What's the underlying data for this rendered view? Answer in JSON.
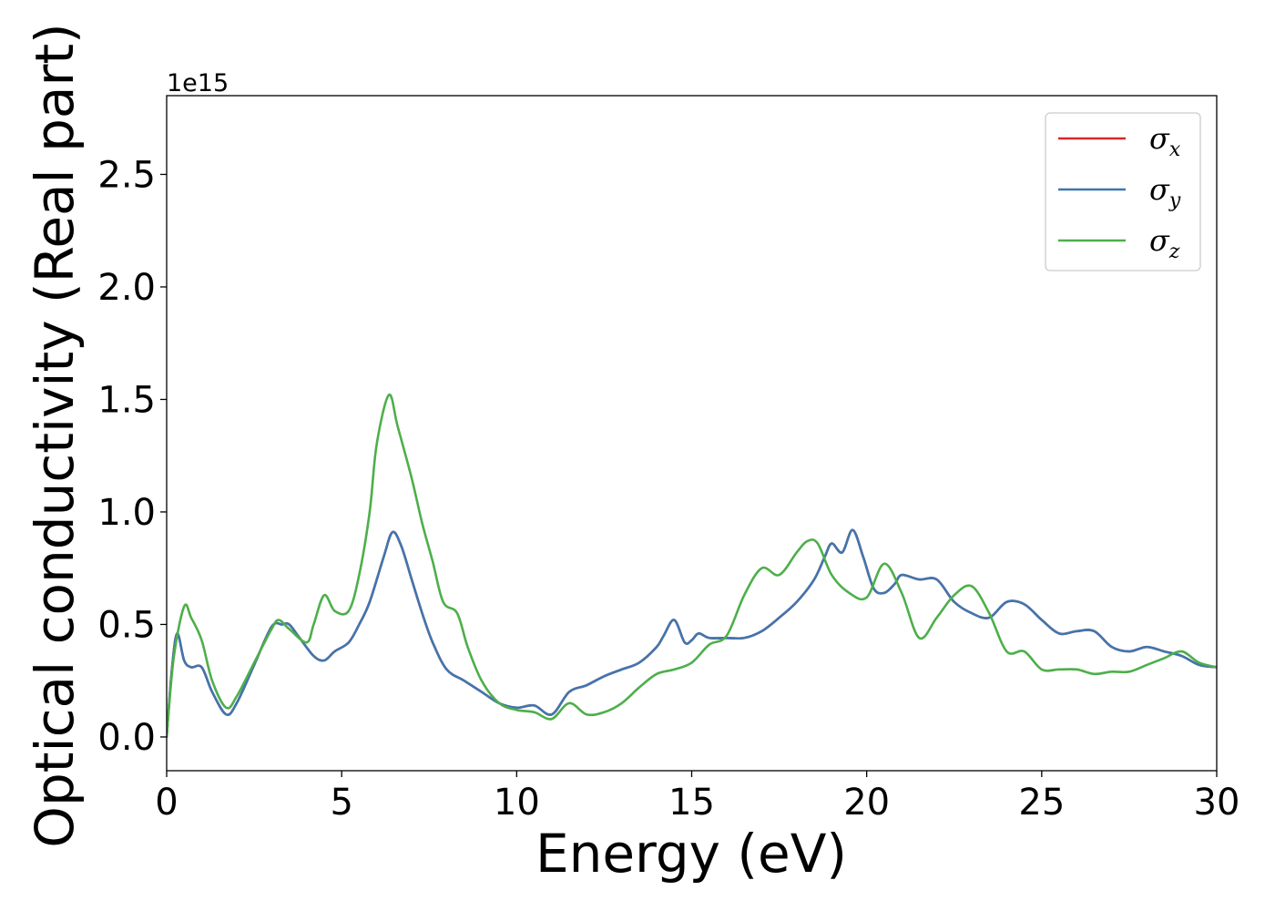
{
  "chart_data": {
    "type": "line",
    "xlabel": "Energy (eV)",
    "ylabel": "Optical conductivity (Real part)",
    "y_offset_label": "1e15",
    "xlim": [
      0,
      30
    ],
    "ylim": [
      -0.15,
      2.85
    ],
    "x_ticks": [
      0,
      5,
      10,
      15,
      20,
      25,
      30
    ],
    "x_tick_labels": [
      "0",
      "5",
      "10",
      "15",
      "20",
      "25",
      "30"
    ],
    "y_ticks": [
      0.0,
      0.5,
      1.0,
      1.5,
      2.0,
      2.5
    ],
    "y_tick_labels": [
      "0.0",
      "0.5",
      "1.0",
      "1.5",
      "2.0",
      "2.5"
    ],
    "grid": false,
    "legend_position": "top-right",
    "legend": [
      {
        "base": "σ",
        "sub": "x",
        "color": "#d62728"
      },
      {
        "base": "σ",
        "sub": "y",
        "color": "#3f76b0"
      },
      {
        "base": "σ",
        "sub": "z",
        "color": "#4daf4a"
      }
    ],
    "series": [
      {
        "color": "#d62728",
        "x": [
          0,
          0.15,
          0.3,
          0.5,
          0.7,
          1.0,
          1.3,
          1.7,
          2.0,
          2.5,
          3.0,
          3.3,
          3.5,
          3.8,
          4.2,
          4.5,
          4.8,
          5.2,
          5.5,
          5.8,
          6.2,
          6.45,
          6.7,
          7.0,
          7.3,
          7.6,
          8.0,
          8.5,
          9.0,
          9.5,
          10.0,
          10.5,
          11.0,
          11.5,
          12.0,
          12.5,
          13.0,
          13.5,
          14.0,
          14.2,
          14.5,
          14.8,
          15.0,
          15.2,
          15.5,
          16.0,
          16.5,
          17.0,
          17.5,
          18.0,
          18.5,
          18.8,
          19.0,
          19.3,
          19.6,
          19.9,
          20.2,
          20.5,
          20.8,
          21.0,
          21.5,
          22.0,
          22.5,
          23.0,
          23.5,
          24.0,
          24.5,
          25.0,
          25.5,
          26.0,
          26.5,
          27.0,
          27.5,
          28.0,
          28.5,
          29.0,
          29.5,
          30.0
        ],
        "values": [
          0.0,
          0.3,
          0.46,
          0.34,
          0.31,
          0.31,
          0.2,
          0.1,
          0.15,
          0.32,
          0.49,
          0.5,
          0.5,
          0.44,
          0.36,
          0.34,
          0.38,
          0.42,
          0.5,
          0.6,
          0.8,
          0.91,
          0.85,
          0.7,
          0.55,
          0.42,
          0.3,
          0.25,
          0.2,
          0.15,
          0.13,
          0.14,
          0.1,
          0.2,
          0.23,
          0.27,
          0.3,
          0.33,
          0.4,
          0.45,
          0.52,
          0.42,
          0.43,
          0.46,
          0.44,
          0.44,
          0.44,
          0.47,
          0.53,
          0.6,
          0.7,
          0.8,
          0.86,
          0.82,
          0.92,
          0.8,
          0.66,
          0.64,
          0.68,
          0.72,
          0.7,
          0.7,
          0.6,
          0.55,
          0.53,
          0.6,
          0.59,
          0.52,
          0.46,
          0.47,
          0.47,
          0.4,
          0.38,
          0.4,
          0.38,
          0.36,
          0.32,
          0.31
        ]
      },
      {
        "color": "#3f76b0",
        "x": [
          0,
          0.15,
          0.3,
          0.5,
          0.7,
          1.0,
          1.3,
          1.7,
          2.0,
          2.5,
          3.0,
          3.3,
          3.5,
          3.8,
          4.2,
          4.5,
          4.8,
          5.2,
          5.5,
          5.8,
          6.2,
          6.45,
          6.7,
          7.0,
          7.3,
          7.6,
          8.0,
          8.5,
          9.0,
          9.5,
          10.0,
          10.5,
          11.0,
          11.5,
          12.0,
          12.5,
          13.0,
          13.5,
          14.0,
          14.2,
          14.5,
          14.8,
          15.0,
          15.2,
          15.5,
          16.0,
          16.5,
          17.0,
          17.5,
          18.0,
          18.5,
          18.8,
          19.0,
          19.3,
          19.6,
          19.9,
          20.2,
          20.5,
          20.8,
          21.0,
          21.5,
          22.0,
          22.5,
          23.0,
          23.5,
          24.0,
          24.5,
          25.0,
          25.5,
          26.0,
          26.5,
          27.0,
          27.5,
          28.0,
          28.5,
          29.0,
          29.5,
          30.0
        ],
        "values": [
          0.0,
          0.3,
          0.46,
          0.34,
          0.31,
          0.31,
          0.2,
          0.1,
          0.15,
          0.32,
          0.49,
          0.5,
          0.5,
          0.44,
          0.36,
          0.34,
          0.38,
          0.42,
          0.5,
          0.6,
          0.8,
          0.91,
          0.85,
          0.7,
          0.55,
          0.42,
          0.3,
          0.25,
          0.2,
          0.15,
          0.13,
          0.14,
          0.1,
          0.2,
          0.23,
          0.27,
          0.3,
          0.33,
          0.4,
          0.45,
          0.52,
          0.42,
          0.43,
          0.46,
          0.44,
          0.44,
          0.44,
          0.47,
          0.53,
          0.6,
          0.7,
          0.8,
          0.86,
          0.82,
          0.92,
          0.8,
          0.66,
          0.64,
          0.68,
          0.72,
          0.7,
          0.7,
          0.6,
          0.55,
          0.53,
          0.6,
          0.59,
          0.52,
          0.46,
          0.47,
          0.47,
          0.4,
          0.38,
          0.4,
          0.38,
          0.36,
          0.32,
          0.31
        ]
      },
      {
        "color": "#4daf4a",
        "x": [
          0,
          0.2,
          0.5,
          0.7,
          1.0,
          1.3,
          1.7,
          2.0,
          2.5,
          3.0,
          3.2,
          3.5,
          4.0,
          4.2,
          4.5,
          4.8,
          5.2,
          5.5,
          5.8,
          6.0,
          6.35,
          6.6,
          7.0,
          7.3,
          7.6,
          7.9,
          8.3,
          8.6,
          9.0,
          9.5,
          10.0,
          10.5,
          11.0,
          11.5,
          12.0,
          12.5,
          13.0,
          13.5,
          14.0,
          14.5,
          15.0,
          15.5,
          16.0,
          16.5,
          17.0,
          17.5,
          18.0,
          18.3,
          18.6,
          19.0,
          19.5,
          20.0,
          20.5,
          21.0,
          21.5,
          22.0,
          22.5,
          23.0,
          23.5,
          24.0,
          24.5,
          25.0,
          25.5,
          26.0,
          26.5,
          27.0,
          27.5,
          28.0,
          28.5,
          29.0,
          29.5,
          30.0
        ],
        "values": [
          0.0,
          0.35,
          0.58,
          0.53,
          0.43,
          0.25,
          0.13,
          0.18,
          0.33,
          0.48,
          0.52,
          0.48,
          0.42,
          0.5,
          0.63,
          0.56,
          0.56,
          0.72,
          1.0,
          1.3,
          1.52,
          1.38,
          1.15,
          0.95,
          0.78,
          0.6,
          0.55,
          0.4,
          0.25,
          0.15,
          0.12,
          0.11,
          0.08,
          0.15,
          0.1,
          0.11,
          0.15,
          0.22,
          0.28,
          0.3,
          0.33,
          0.41,
          0.45,
          0.63,
          0.75,
          0.72,
          0.82,
          0.87,
          0.86,
          0.72,
          0.64,
          0.62,
          0.77,
          0.64,
          0.44,
          0.53,
          0.63,
          0.67,
          0.55,
          0.38,
          0.38,
          0.3,
          0.3,
          0.3,
          0.28,
          0.29,
          0.29,
          0.32,
          0.35,
          0.38,
          0.33,
          0.31
        ]
      }
    ]
  }
}
